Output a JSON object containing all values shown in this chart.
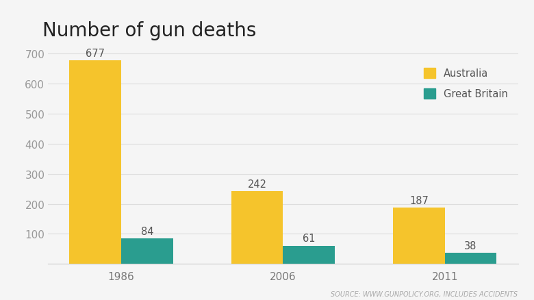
{
  "title": "Number of gun deaths",
  "years": [
    "1986",
    "2006",
    "2011"
  ],
  "australia": [
    677,
    242,
    187
  ],
  "great_britain": [
    84,
    61,
    38
  ],
  "australia_color": "#F5C42C",
  "great_britain_color": "#2A9D8F",
  "ylim": [
    0,
    700
  ],
  "yticks": [
    100,
    200,
    300,
    400,
    500,
    600,
    700
  ],
  "background_color": "#f5f5f5",
  "bar_width": 0.32,
  "source_text": "SOURCE: WWW.GUNPOLICY.ORG, INCLUDES ACCIDENTS",
  "legend_labels": [
    "Australia",
    "Great Britain"
  ],
  "title_fontsize": 20,
  "label_fontsize": 10.5,
  "tick_fontsize": 11,
  "source_fontsize": 7
}
